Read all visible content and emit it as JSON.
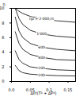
{
  "chart_data": {
    "type": "line",
    "x_label": "ΔP/(T² + ΔP²)",
    "y_label": "η",
    "x": [
      0.01,
      0.02,
      0.03,
      0.05,
      0.08,
      0.12,
      0.17
    ],
    "series": [
      {
        "name": "ηp = 2 000 m",
        "color": "#000000",
        "values": [
          10,
          9.6,
          9.3,
          8.9,
          8.6,
          8.3,
          8.1
        ]
      },
      {
        "name": "1 000",
        "color": "#000000",
        "values": [
          10,
          8.6,
          7.8,
          7.0,
          6.5,
          6.2,
          6.0
        ]
      },
      {
        "name": "600",
        "color": "#000000",
        "values": [
          8.8,
          6.9,
          6.0,
          5.2,
          4.7,
          4.4,
          4.2
        ]
      },
      {
        "name": "400",
        "color": "#000000",
        "values": [
          6.8,
          5.2,
          4.4,
          3.7,
          3.3,
          3.0,
          2.9
        ]
      },
      {
        "name": "200",
        "color": "#000000",
        "values": [
          4.2,
          3.0,
          2.5,
          2.0,
          1.8,
          1.6,
          1.5
        ]
      },
      {
        "name": "100",
        "color": "#000000",
        "values": [
          2.2,
          1.5,
          1.2,
          1.0,
          0.9,
          0.8,
          0.75
        ]
      }
    ],
    "xlim": [
      0,
      0.17
    ],
    "xticks": [
      {
        "value": 0,
        "label": "0.0"
      },
      0.05,
      0.1,
      0.15
    ],
    "ylim": [
      0,
      10
    ],
    "yticks": [
      0,
      2,
      4,
      6,
      8,
      10
    ],
    "grid": false,
    "data_labels": false
  }
}
